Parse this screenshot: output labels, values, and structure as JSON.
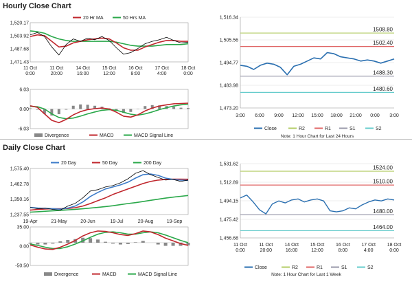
{
  "sections": {
    "hourly_title": "Hourly Close Chart",
    "daily_title": "Daily Close Chart"
  },
  "colors": {
    "price": "#000000",
    "ma_short": "#c0262c",
    "ma_long": "#2aa84a",
    "ma_200": "#2aa84a",
    "ma_20d": "#3d7cc9",
    "macd": "#c0262c",
    "signal": "#2aa84a",
    "divergence": "#888888",
    "close": "#2a6fb0",
    "r2": "#b3cc66",
    "r1": "#e06666",
    "s1": "#9999aa",
    "s2": "#66cccc"
  },
  "chart_data": [
    {
      "id": "hourly-price",
      "type": "line",
      "legend": [
        "20 Hr MA",
        "50 Hrs MA"
      ],
      "x_ticks": [
        "11 Oct\n0:00",
        "11 Oct\n20:00",
        "14 Oct\n16:00",
        "15 Oct\n12:00",
        "16 Oct\n8:00",
        "17 Oct\n4:00",
        "18 Oct\n0:00"
      ],
      "y_ticks": [
        "1,520.17",
        "1,503.92",
        "1,487.68",
        "1,471.43"
      ],
      "ylim": [
        1471.43,
        1520.17
      ],
      "series": [
        {
          "name": "Close",
          "values": [
            1505,
            1508,
            1503,
            1490,
            1480,
            1493,
            1500,
            1497,
            1501,
            1499,
            1503,
            1498,
            1489,
            1481,
            1483,
            1488,
            1494,
            1497,
            1499,
            1502,
            1498,
            1495,
            1496
          ]
        },
        {
          "name": "20 Hr MA",
          "values": [
            1503,
            1505,
            1504,
            1497,
            1490,
            1491,
            1495,
            1497,
            1499,
            1500,
            1501,
            1500,
            1495,
            1489,
            1486,
            1486,
            1490,
            1493,
            1496,
            1498,
            1498,
            1497,
            1497
          ]
        },
        {
          "name": "50 Hrs MA",
          "values": [
            1510,
            1509,
            1507,
            1503,
            1500,
            1498,
            1497,
            1497,
            1497,
            1497,
            1497,
            1497,
            1496,
            1494,
            1492,
            1491,
            1491,
            1491,
            1492,
            1493,
            1493,
            1493,
            1494
          ]
        }
      ]
    },
    {
      "id": "hourly-macd",
      "type": "line",
      "legend": [
        "Divergence",
        "MACD",
        "MACD Signal Line"
      ],
      "y_ticks": [
        "6.03",
        "0.00",
        "-6.03"
      ],
      "ylim": [
        -6.03,
        6.03
      ],
      "series": [
        {
          "name": "MACD",
          "values": [
            1.0,
            0.5,
            -1.5,
            -3.5,
            -4.2,
            -3.2,
            -1.8,
            -0.8,
            -0.2,
            0.1,
            0.3,
            0.0,
            -1.0,
            -2.2,
            -2.5,
            -1.8,
            -0.6,
            0.3,
            0.9,
            1.3,
            1.6,
            1.7,
            1.8
          ]
        },
        {
          "name": "MACD Signal Line",
          "values": [
            0.8,
            0.7,
            0.0,
            -1.5,
            -2.6,
            -3.0,
            -2.8,
            -2.2,
            -1.5,
            -0.9,
            -0.4,
            -0.2,
            -0.4,
            -1.0,
            -1.6,
            -1.9,
            -1.5,
            -0.9,
            -0.2,
            0.4,
            0.9,
            1.3,
            1.5
          ]
        },
        {
          "name": "Divergence",
          "values": [
            0.2,
            -0.2,
            -1.5,
            -2.0,
            -1.6,
            -0.2,
            1.0,
            1.4,
            1.3,
            1.0,
            0.7,
            0.2,
            -0.6,
            -1.2,
            -0.9,
            0.1,
            0.9,
            1.2,
            1.1,
            0.9,
            0.7,
            0.4,
            0.3
          ]
        }
      ]
    },
    {
      "id": "hourly-levels",
      "type": "line",
      "legend": [
        "Close",
        "R2",
        "R1",
        "S1",
        "S2"
      ],
      "note": "Note: 1 Hour Chart for Last 24 Hours",
      "x_ticks": [
        "3:00",
        "6:00",
        "9:00",
        "12:00",
        "15:00",
        "18:00",
        "21:00",
        "0:00",
        "3:00"
      ],
      "y_ticks": [
        "1,516.34",
        "1,505.56",
        "1,494.77",
        "1,483.98",
        "1,473.20"
      ],
      "ylim": [
        1473.2,
        1516.34
      ],
      "levels": [
        {
          "name": "R2",
          "value": 1508.8,
          "label": "1508.80"
        },
        {
          "name": "R1",
          "value": 1502.4,
          "label": "1502.40"
        },
        {
          "name": "S1",
          "value": 1488.3,
          "label": "1488.30"
        },
        {
          "name": "S2",
          "value": 1480.6,
          "label": "1480.60"
        }
      ],
      "series": [
        {
          "name": "Close",
          "values": [
            1493.5,
            1493.0,
            1491.5,
            1493.5,
            1494.5,
            1494.0,
            1492.5,
            1489.0,
            1493.0,
            1494.0,
            1495.5,
            1497.0,
            1496.5,
            1499.5,
            1499.0,
            1497.5,
            1497.0,
            1496.5,
            1495.5,
            1496.0,
            1495.5,
            1494.5,
            1495.5,
            1496.5
          ]
        }
      ]
    },
    {
      "id": "daily-price",
      "type": "line",
      "legend": [
        "20 Day",
        "50 Day",
        "200 Day"
      ],
      "x_ticks": [
        "19-Apr",
        "21-May",
        "20-Jun",
        "19-Jul",
        "20-Aug",
        "19-Sep"
      ],
      "y_ticks": [
        "1,575.40",
        "1,462.78",
        "1,350.16",
        "1,237.55"
      ],
      "ylim": [
        1237.55,
        1575.4
      ],
      "series": [
        {
          "name": "Close",
          "values": [
            1290,
            1280,
            1285,
            1275,
            1270,
            1300,
            1320,
            1360,
            1410,
            1420,
            1440,
            1450,
            1470,
            1500,
            1540,
            1560,
            1530,
            1510,
            1490,
            1495,
            1480,
            1490
          ]
        },
        {
          "name": "20 Day",
          "values": [
            1290,
            1285,
            1283,
            1280,
            1277,
            1285,
            1300,
            1330,
            1370,
            1400,
            1425,
            1440,
            1455,
            1475,
            1505,
            1530,
            1535,
            1525,
            1505,
            1495,
            1490,
            1488
          ]
        },
        {
          "name": "50 Day",
          "values": [
            1270,
            1275,
            1278,
            1280,
            1280,
            1282,
            1288,
            1300,
            1318,
            1340,
            1360,
            1385,
            1405,
            1425,
            1445,
            1465,
            1480,
            1490,
            1495,
            1497,
            1497,
            1496
          ]
        },
        {
          "name": "200 Day",
          "values": [
            1255,
            1258,
            1262,
            1265,
            1268,
            1272,
            1276,
            1280,
            1285,
            1290,
            1296,
            1302,
            1310,
            1318,
            1325,
            1333,
            1342,
            1350,
            1358,
            1365,
            1371,
            1377
          ]
        }
      ]
    },
    {
      "id": "daily-macd",
      "type": "line",
      "legend": [
        "Divergence",
        "MACD",
        "MACD Signal Line"
      ],
      "y_ticks": [
        "35.00",
        "0.00",
        "-50.50"
      ],
      "ylim": [
        -50.5,
        35.0
      ],
      "series": [
        {
          "name": "MACD",
          "values": [
            -5,
            -10,
            -14,
            -15,
            -10,
            -3,
            5,
            15,
            22,
            26,
            25,
            22,
            18,
            16,
            20,
            26,
            24,
            18,
            10,
            4,
            -2,
            -6
          ]
        },
        {
          "name": "MACD Signal Line",
          "values": [
            -3,
            -6,
            -10,
            -13,
            -13,
            -9,
            -3,
            4,
            12,
            19,
            23,
            24,
            22,
            19,
            19,
            22,
            24,
            22,
            17,
            11,
            5,
            0
          ]
        },
        {
          "name": "Divergence",
          "values": [
            -2,
            -4,
            -4,
            -2,
            3,
            6,
            8,
            11,
            10,
            7,
            2,
            -2,
            -4,
            -3,
            1,
            4,
            0,
            -4,
            -7,
            -7,
            -7,
            -6
          ]
        }
      ]
    },
    {
      "id": "daily-levels",
      "type": "line",
      "legend": [
        "Close",
        "R2",
        "R1",
        "S1",
        "S2"
      ],
      "note": "Note: 1 Hour Chart for Last 1 Week",
      "x_ticks": [
        "11 Oct\n0:00",
        "11 Oct\n20:00",
        "14 Oct\n16:00",
        "15 Oct\n12:00",
        "16 Oct\n8:00",
        "17 Oct\n4:00",
        "18 Oct\n0:00"
      ],
      "y_ticks": [
        "1,531.62",
        "1,512.89",
        "1,494.15",
        "1,475.42",
        "1,456.68"
      ],
      "ylim": [
        1456.68,
        1531.62
      ],
      "levels": [
        {
          "name": "R2",
          "value": 1524.0,
          "label": "1524.00"
        },
        {
          "name": "R1",
          "value": 1510.0,
          "label": "1510.00"
        },
        {
          "name": "S1",
          "value": 1480.0,
          "label": "1480.00"
        },
        {
          "name": "S2",
          "value": 1464.0,
          "label": "1464.00"
        }
      ],
      "series": [
        {
          "name": "Close",
          "values": [
            1497,
            1500,
            1493,
            1485,
            1481,
            1491,
            1494,
            1492,
            1495,
            1496,
            1493,
            1495,
            1496,
            1494,
            1484,
            1483,
            1484,
            1487,
            1486,
            1490,
            1493,
            1495,
            1494,
            1496,
            1495
          ]
        }
      ]
    }
  ]
}
